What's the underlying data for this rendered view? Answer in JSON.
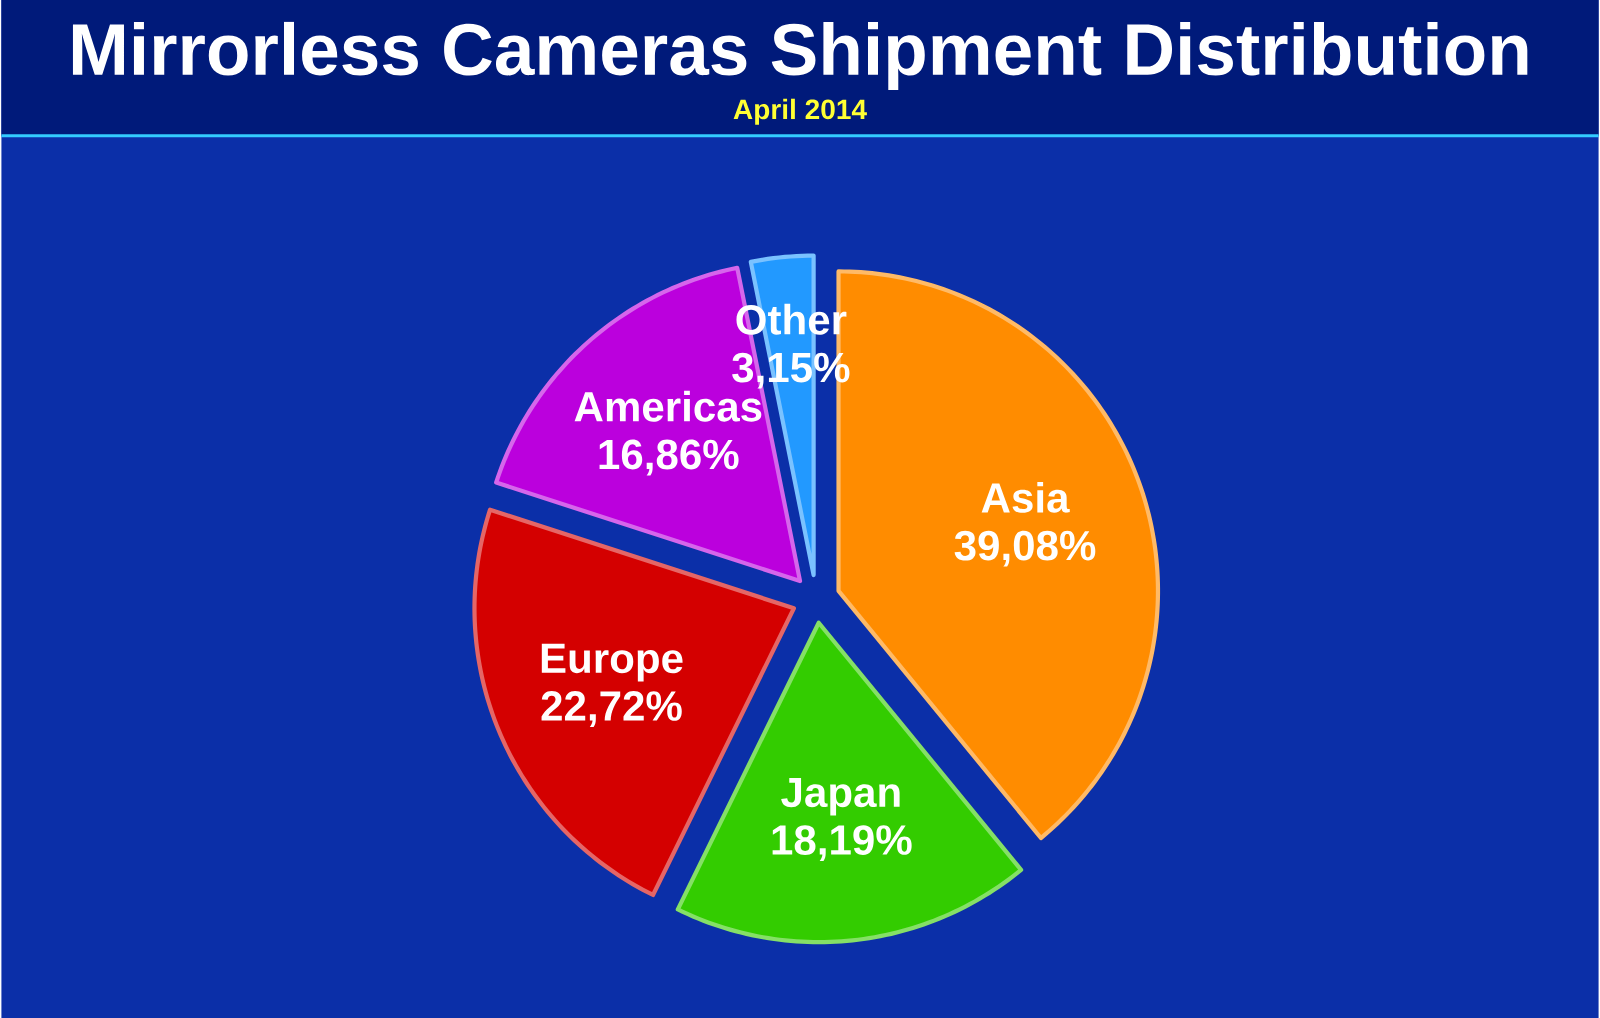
{
  "chart_data": {
    "type": "pie",
    "title": "Mirrorless Cameras Shipment Distribution",
    "subtitle": "April 2014",
    "categories": [
      "Asia",
      "Japan",
      "Europe",
      "Americas",
      "Other"
    ],
    "values": [
      39.08,
      18.19,
      22.72,
      16.86,
      3.15
    ],
    "colors": [
      "#ff8c00",
      "#33cc00",
      "#d40000",
      "#bb00dd",
      "#2299ff"
    ],
    "value_labels": [
      "39,08%",
      "18,19%",
      "22,72%",
      "16,86%",
      "3,15%"
    ]
  }
}
